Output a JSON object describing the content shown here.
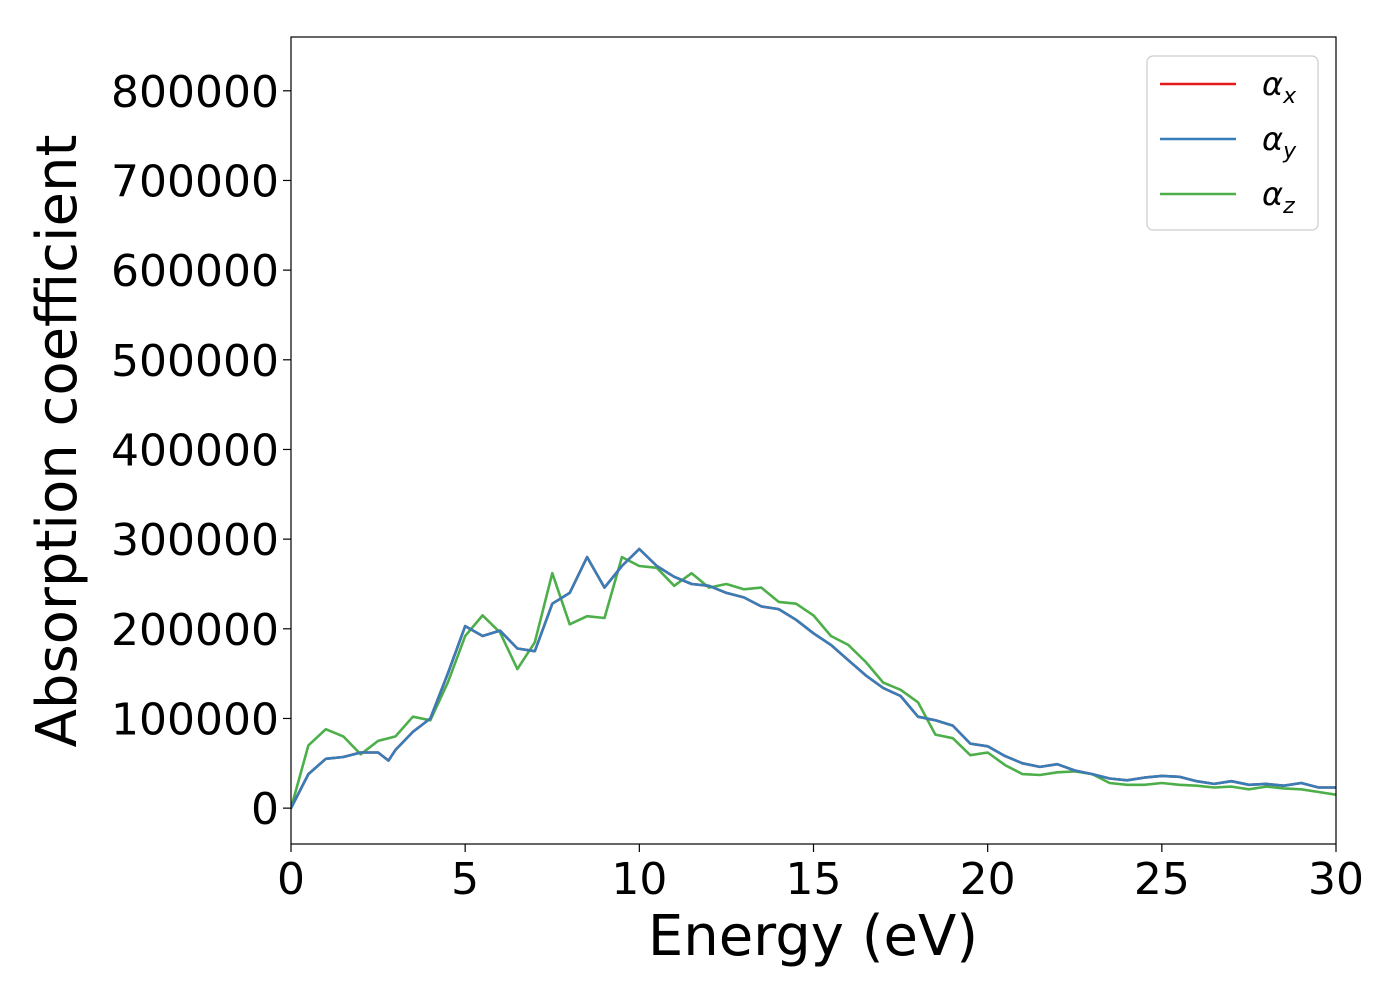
{
  "chart_data": {
    "type": "line",
    "xlabel": "Energy (eV)",
    "ylabel": "Absorption coefficient",
    "xlim": [
      0,
      30
    ],
    "ylim": [
      -40000,
      860000
    ],
    "xticks": [
      0,
      5,
      10,
      15,
      20,
      25,
      30
    ],
    "xtick_labels": [
      "0",
      "5",
      "10",
      "15",
      "20",
      "25",
      "30"
    ],
    "yticks": [
      0,
      100000,
      200000,
      300000,
      400000,
      500000,
      600000,
      700000,
      800000
    ],
    "ytick_labels": [
      "0",
      "100000",
      "200000",
      "300000",
      "400000",
      "500000",
      "600000",
      "700000",
      "800000"
    ],
    "grid": false,
    "legend_position": "top-right",
    "x": [
      0,
      0.5,
      1,
      1.5,
      2,
      2.5,
      2.8,
      3,
      3.5,
      4,
      4.5,
      5,
      5.5,
      6,
      6.5,
      7,
      7.5,
      8,
      8.5,
      9,
      9.5,
      10,
      10.5,
      11,
      11.5,
      12,
      12.5,
      13,
      13.5,
      14,
      14.5,
      15,
      15.5,
      16,
      16.5,
      17,
      17.5,
      18,
      18.5,
      19,
      19.5,
      20,
      20.5,
      21,
      21.5,
      22,
      22.5,
      23,
      23.5,
      24,
      24.5,
      25,
      25.5,
      26,
      26.5,
      27,
      27.5,
      28,
      28.5,
      29,
      29.5,
      30
    ],
    "series": [
      {
        "name": "x",
        "color": "#e41a1c",
        "values": [
          0,
          38000,
          55000,
          57000,
          62000,
          62000,
          53000,
          65000,
          85000,
          100000,
          150000,
          203000,
          192000,
          198000,
          178000,
          175000,
          228000,
          240000,
          280000,
          246000,
          270000,
          289000,
          270000,
          258000,
          250000,
          248000,
          240000,
          235000,
          225000,
          222000,
          210000,
          195000,
          182000,
          165000,
          148000,
          134000,
          125000,
          102000,
          98000,
          92000,
          72000,
          69000,
          58000,
          50000,
          46000,
          49000,
          42000,
          38000,
          33000,
          31000,
          34000,
          36000,
          35000,
          30000,
          27000,
          30000,
          26000,
          27000,
          25000,
          28000,
          23000,
          23000
        ]
      },
      {
        "name": "y",
        "color": "#377eb8",
        "values": [
          0,
          38000,
          55000,
          57000,
          62000,
          62000,
          53000,
          65000,
          85000,
          100000,
          150000,
          203000,
          192000,
          198000,
          178000,
          175000,
          228000,
          240000,
          280000,
          246000,
          270000,
          289000,
          270000,
          258000,
          250000,
          248000,
          240000,
          235000,
          225000,
          222000,
          210000,
          195000,
          182000,
          165000,
          148000,
          134000,
          125000,
          102000,
          98000,
          92000,
          72000,
          69000,
          58000,
          50000,
          46000,
          49000,
          42000,
          38000,
          33000,
          31000,
          34000,
          36000,
          35000,
          30000,
          27000,
          30000,
          26000,
          27000,
          25000,
          28000,
          23000,
          23000
        ]
      },
      {
        "name": "z",
        "color": "#4daf4a",
        "values": [
          0,
          70000,
          88000,
          80000,
          60000,
          75000,
          78000,
          80000,
          102000,
          98000,
          140000,
          192000,
          215000,
          196000,
          155000,
          185000,
          262000,
          205000,
          214000,
          212000,
          280000,
          270000,
          268000,
          248000,
          262000,
          246000,
          250000,
          244000,
          246000,
          230000,
          228000,
          215000,
          192000,
          182000,
          163000,
          140000,
          132000,
          118000,
          82000,
          78000,
          59000,
          62000,
          48000,
          38000,
          37000,
          40000,
          41000,
          38000,
          28000,
          26000,
          26000,
          28000,
          26000,
          25000,
          23000,
          24000,
          21000,
          24000,
          22000,
          21000,
          18000,
          15000
        ]
      }
    ]
  },
  "legend": {
    "symbol": "α",
    "items": [
      {
        "sub": "x",
        "color": "#e41a1c"
      },
      {
        "sub": "y",
        "color": "#377eb8"
      },
      {
        "sub": "z",
        "color": "#4daf4a"
      }
    ]
  }
}
